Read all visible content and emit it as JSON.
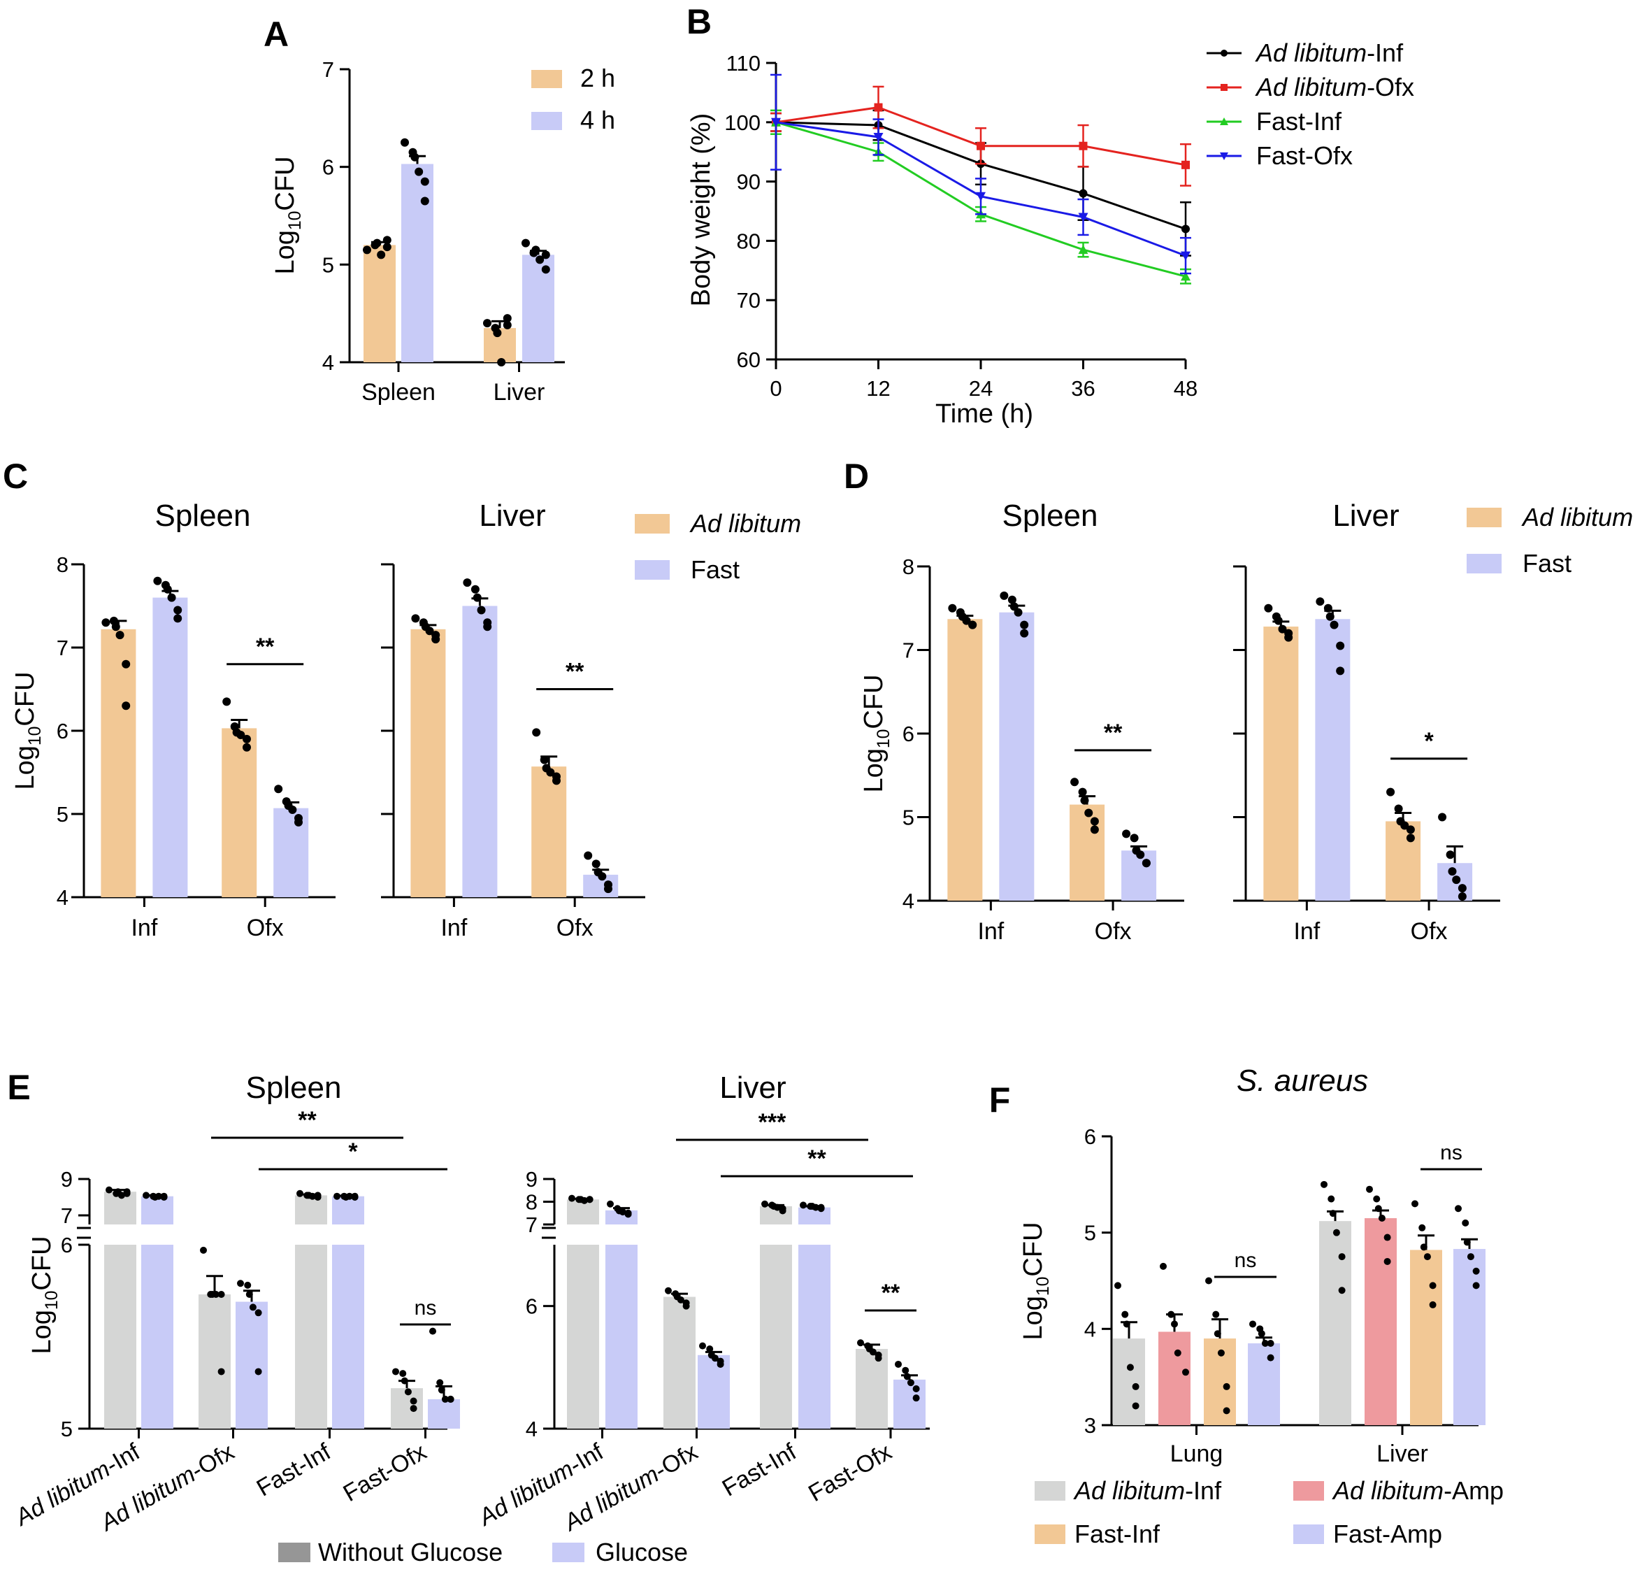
{
  "colors": {
    "orange": "#f2c895",
    "lavender": "#c8cbf7",
    "gray": "#d5d6d5",
    "pink": "#ee9a9e",
    "black_line": "#000000",
    "red_line": "#e4231f",
    "green_line": "#22cc22",
    "blue_line": "#1a1ae6",
    "legend_gray": "#969696"
  },
  "chart_data": [
    {
      "id": "A",
      "type": "bar",
      "letter": "A",
      "ylabel_main": "Log",
      "ylabel_sub": "10",
      "ylabel_end": "CFU",
      "ylim": [
        4,
        7
      ],
      "yticks": [
        "4",
        "5",
        "6",
        "7"
      ],
      "categories": [
        "Spleen",
        "Liver"
      ],
      "series": [
        {
          "name": "2 h",
          "values": [
            5.2,
            4.35
          ],
          "sem": [
            0.03,
            0.07
          ],
          "points": [
            [
              5.15,
              5.2,
              5.22,
              5.1,
              5.18,
              5.25
            ],
            [
              4.4,
              4.35,
              4.3,
              4.0,
              4.45,
              4.38
            ]
          ]
        },
        {
          "name": "4 h",
          "values": [
            6.03,
            5.1
          ],
          "sem": [
            0.08,
            0.04
          ],
          "points": [
            [
              6.25,
              6.15,
              6.1,
              5.95,
              5.85,
              5.65
            ],
            [
              5.22,
              5.12,
              5.15,
              5.05,
              4.95,
              5.1
            ]
          ]
        }
      ]
    },
    {
      "id": "B",
      "type": "line",
      "letter": "B",
      "ylabel": "Body weight (%)",
      "xlabel": "Time (h)",
      "ylim": [
        60,
        110
      ],
      "yticks": [
        "60",
        "70",
        "80",
        "90",
        "100",
        "110"
      ],
      "xlim": [
        0,
        48
      ],
      "xticks": [
        "0",
        "12",
        "24",
        "36",
        "48"
      ],
      "x": [
        0,
        12,
        24,
        36,
        48
      ],
      "series": [
        {
          "name_italic": "Ad libitum",
          "name_rest": "-Inf",
          "y": [
            100,
            99.5,
            93,
            88,
            82
          ],
          "err": [
            1.5,
            2.5,
            3.5,
            4.5,
            4.5
          ]
        },
        {
          "name_italic": "Ad libitum",
          "name_rest": "-Ofx",
          "y": [
            100,
            102.5,
            96,
            96,
            92.8
          ],
          "err": [
            1.5,
            3.5,
            3,
            3.5,
            3.5
          ]
        },
        {
          "name_italic": "",
          "name_rest": "Fast-Inf",
          "y": [
            100,
            95,
            84.5,
            78.5,
            74
          ],
          "err": [
            2,
            1.5,
            1.2,
            1.2,
            1.2
          ]
        },
        {
          "name_italic": "",
          "name_rest": "Fast-Ofx",
          "y": [
            100,
            97.5,
            87.5,
            84,
            77.5
          ],
          "err": [
            8,
            3,
            3,
            3,
            3
          ]
        }
      ]
    },
    {
      "id": "C",
      "type": "bar",
      "letter": "C",
      "ylabel_main": "Log",
      "ylabel_sub": "10",
      "ylabel_end": "CFU",
      "ylim": [
        4,
        8
      ],
      "yticks": [
        "4",
        "5",
        "6",
        "7",
        "8"
      ],
      "legend": [
        "Ad libitum",
        "Fast"
      ],
      "subplots": [
        {
          "title": "Spleen",
          "categories": [
            "Inf",
            "Ofx"
          ],
          "series": [
            {
              "values": [
                7.22,
                6.03
              ],
              "sem": [
                0.1,
                0.1
              ],
              "points": [
                [
                  7.3,
                  7.32,
                  7.25,
                  7.15,
                  6.8,
                  6.3
                ],
                [
                  6.35,
                  6.05,
                  5.98,
                  5.95,
                  5.9,
                  5.8
                ]
              ]
            },
            {
              "values": [
                7.6,
                5.07
              ],
              "sem": [
                0.08,
                0.07
              ],
              "points": [
                [
                  7.8,
                  7.75,
                  7.7,
                  7.6,
                  7.45,
                  7.35
                ],
                [
                  5.3,
                  5.15,
                  5.1,
                  5.05,
                  4.95,
                  4.9
                ]
              ]
            }
          ],
          "significance": [
            {
              "label": "**",
              "y": 6.8
            }
          ]
        },
        {
          "title": "Liver",
          "categories": [
            "Inf",
            "Ofx"
          ],
          "series": [
            {
              "values": [
                7.22,
                5.57
              ],
              "sem": [
                0.05,
                0.12
              ],
              "points": [
                [
                  7.35,
                  7.3,
                  7.25,
                  7.2,
                  7.15,
                  7.1
                ],
                [
                  5.98,
                  5.65,
                  5.55,
                  5.5,
                  5.45,
                  5.4
                ]
              ]
            },
            {
              "values": [
                7.5,
                4.27
              ],
              "sem": [
                0.09,
                0.06
              ],
              "points": [
                [
                  7.78,
                  7.7,
                  7.6,
                  7.45,
                  7.3,
                  7.25
                ],
                [
                  4.5,
                  4.4,
                  4.3,
                  4.25,
                  4.15,
                  4.1
                ]
              ]
            }
          ],
          "significance": [
            {
              "label": "**",
              "y": 6.5
            }
          ]
        }
      ]
    },
    {
      "id": "D",
      "type": "bar",
      "letter": "D",
      "ylabel_main": "Log",
      "ylabel_sub": "10",
      "ylabel_end": "CFU",
      "ylim": [
        4,
        8
      ],
      "yticks": [
        "4",
        "5",
        "6",
        "7",
        "8"
      ],
      "legend": [
        "Ad libitum",
        "Fast"
      ],
      "subplots": [
        {
          "title": "Spleen",
          "categories": [
            "Inf",
            "Ofx"
          ],
          "series": [
            {
              "values": [
                7.37,
                5.15
              ],
              "sem": [
                0.04,
                0.1
              ],
              "points": [
                [
                  7.5,
                  7.45,
                  7.4,
                  7.35,
                  7.3,
                  7.3
                ],
                [
                  5.42,
                  5.3,
                  5.2,
                  5.05,
                  4.95,
                  4.85
                ]
              ]
            },
            {
              "values": [
                7.45,
                4.6
              ],
              "sem": [
                0.08,
                0.05
              ],
              "points": [
                [
                  7.65,
                  7.6,
                  7.52,
                  7.45,
                  7.3,
                  7.2
                ],
                [
                  4.8,
                  4.75,
                  4.6,
                  4.55,
                  4.45,
                  4.45
                ]
              ]
            }
          ],
          "significance": [
            {
              "label": "**",
              "y": 5.8
            }
          ]
        },
        {
          "title": "Liver",
          "categories": [
            "Inf",
            "Ofx"
          ],
          "series": [
            {
              "values": [
                7.28,
                4.95
              ],
              "sem": [
                0.06,
                0.1
              ],
              "points": [
                [
                  7.5,
                  7.4,
                  7.35,
                  7.25,
                  7.2,
                  7.15
                ],
                [
                  5.3,
                  5.1,
                  4.95,
                  4.9,
                  4.85,
                  4.75
                ]
              ]
            },
            {
              "values": [
                7.37,
                4.45
              ],
              "sem": [
                0.1,
                0.2
              ],
              "points": [
                [
                  7.58,
                  7.5,
                  7.4,
                  7.3,
                  7.05,
                  6.75
                ],
                [
                  5.0,
                  4.55,
                  4.35,
                  4.25,
                  4.15,
                  4.05
                ]
              ]
            }
          ],
          "significance": [
            {
              "label": "*",
              "y": 5.7
            }
          ]
        }
      ]
    },
    {
      "id": "E",
      "type": "bar",
      "letter": "E",
      "ylabel_main": "Log",
      "ylabel_sub": "10",
      "ylabel_end": "CFU",
      "categories_italic": [
        "Ad libitum",
        "Ad libitum",
        "",
        ""
      ],
      "categories_rest": [
        "-Inf",
        "-Ofx",
        "Fast-Inf",
        "Fast-Ofx"
      ],
      "legend": [
        "Without Glucose",
        "Glucose"
      ],
      "subplots": [
        {
          "title": "Spleen",
          "upper": {
            "ylim": [
              6,
              9
            ],
            "yticks": [
              "7",
              "9"
            ]
          },
          "lower": {
            "ylim": [
              5,
              6
            ],
            "yticks": [
              "5",
              "6"
            ]
          },
          "series": [
            {
              "values": [
                8.3,
                5.73,
                8.1,
                5.22
              ],
              "sem": [
                0.1,
                0.1,
                0.05,
                0.04
              ],
              "points": [
                [
                  8.4,
                  8.2,
                  8.3,
                  8.1,
                  8.3,
                  8.2
                ],
                [
                  5.97,
                  5.73,
                  5.73,
                  5.73,
                  5.73,
                  5.31
                ],
                [
                  8.2,
                  8.1,
                  8.1,
                  8.05,
                  8.1,
                  8.0
                ],
                [
                  5.31,
                  5.3,
                  5.26,
                  5.2,
                  5.15,
                  5.11
                ]
              ]
            },
            {
              "values": [
                8.05,
                5.69,
                8.05,
                5.16
              ],
              "sem": [
                0.05,
                0.06,
                0.03,
                0.07
              ],
              "points": [
                [
                  8.1,
                  8.05,
                  8.0,
                  8.05,
                  8.0,
                  8.05
                ],
                [
                  5.79,
                  5.78,
                  5.73,
                  5.66,
                  5.63,
                  5.31
                ],
                [
                  8.05,
                  8.05,
                  8.0,
                  8.05,
                  8.0,
                  8.05
                ],
                [
                  5.53,
                  5.25,
                  5.21,
                  5.16,
                  5.16,
                  5.16
                ]
              ]
            }
          ],
          "significance": [
            {
              "label": "**",
              "from": [
                1,
                0
              ],
              "to": [
                3,
                0
              ]
            },
            {
              "label": "*",
              "from": [
                1,
                1
              ],
              "to": [
                3,
                1
              ]
            },
            {
              "label": "ns",
              "from": [
                3,
                0
              ],
              "to": [
                3,
                1
              ]
            }
          ]
        },
        {
          "title": "Liver",
          "upper": {
            "ylim": [
              7,
              9
            ],
            "yticks": [
              "7",
              "8",
              "9"
            ]
          },
          "lower": {
            "ylim": [
              4,
              7
            ],
            "yticks": [
              "4",
              "6"
            ]
          },
          "series": [
            {
              "values": [
                8.1,
                6.15,
                7.8,
                5.3
              ],
              "sem": [
                0.03,
                0.05,
                0.05,
                0.07
              ],
              "points": [
                [
                  8.15,
                  8.1,
                  8.1,
                  8.05,
                  8.1,
                  8.1
                ],
                [
                  6.25,
                  6.2,
                  6.15,
                  6.1,
                  6.05,
                  6.0
                ],
                [
                  7.9,
                  7.85,
                  7.8,
                  7.75,
                  7.7,
                  7.6
                ],
                [
                  5.4,
                  5.35,
                  5.3,
                  5.25,
                  5.2,
                  5.15
                ]
              ]
            },
            {
              "values": [
                7.62,
                5.2,
                7.75,
                4.8
              ],
              "sem": [
                0.1,
                0.05,
                0.05,
                0.07
              ],
              "points": [
                [
                  7.9,
                  7.7,
                  7.6,
                  7.55,
                  7.5,
                  7.45
                ],
                [
                  5.35,
                  5.3,
                  5.2,
                  5.15,
                  5.1,
                  5.05
                ],
                [
                  7.85,
                  7.8,
                  7.8,
                  7.75,
                  7.75,
                  7.7
                ],
                [
                  5.05,
                  4.95,
                  4.85,
                  4.75,
                  4.65,
                  4.5
                ]
              ]
            }
          ],
          "significance": [
            {
              "label": "***",
              "from": [
                1,
                0
              ],
              "to": [
                3,
                0
              ]
            },
            {
              "label": "**",
              "from": [
                1,
                1
              ],
              "to": [
                3,
                1
              ]
            },
            {
              "label": "**",
              "from": [
                3,
                0
              ],
              "to": [
                3,
                1
              ]
            }
          ]
        }
      ]
    },
    {
      "id": "F",
      "type": "bar",
      "letter": "F",
      "title_italic": "S. aureus",
      "ylabel_main": "Log",
      "ylabel_sub": "10",
      "ylabel_end": "CFU",
      "ylim": [
        3,
        6
      ],
      "yticks": [
        "3",
        "4",
        "5",
        "6"
      ],
      "categories": [
        "Lung",
        "Liver"
      ],
      "legend": [
        {
          "italic": "Ad libitum",
          "rest": "-Inf"
        },
        {
          "italic": "Ad libitum",
          "rest": "-Amp"
        },
        {
          "italic": "",
          "rest": "Fast-Inf"
        },
        {
          "italic": "",
          "rest": "Fast-Amp"
        }
      ],
      "series": [
        {
          "values": [
            3.9,
            5.12
          ],
          "sem": [
            0.17,
            0.1
          ],
          "points": [
            [
              4.45,
              4.15,
              4.05,
              3.6,
              3.4,
              3.2
            ],
            [
              5.5,
              5.35,
              5.2,
              5.0,
              4.75,
              4.4
            ]
          ]
        },
        {
          "values": [
            3.97,
            5.15
          ],
          "sem": [
            0.18,
            0.08
          ],
          "points": [
            [
              4.65,
              4.15,
              4.05,
              3.75,
              3.55
            ],
            [
              5.45,
              5.35,
              5.25,
              5.15,
              4.95,
              4.7
            ]
          ]
        },
        {
          "values": [
            3.9,
            4.82
          ],
          "sem": [
            0.2,
            0.15
          ],
          "points": [
            [
              4.5,
              4.15,
              3.95,
              3.75,
              3.4,
              3.15
            ],
            [
              5.3,
              5.05,
              4.85,
              4.75,
              4.45,
              4.25
            ]
          ]
        },
        {
          "values": [
            3.85,
            4.83
          ],
          "sem": [
            0.06,
            0.1
          ],
          "points": [
            [
              4.05,
              4.0,
              3.95,
              3.85,
              3.85,
              3.7
            ],
            [
              5.25,
              5.1,
              4.9,
              4.75,
              4.6,
              4.45
            ]
          ]
        }
      ],
      "significance": [
        {
          "label": "ns",
          "group": 0
        },
        {
          "label": "ns",
          "group": 1
        }
      ]
    }
  ]
}
